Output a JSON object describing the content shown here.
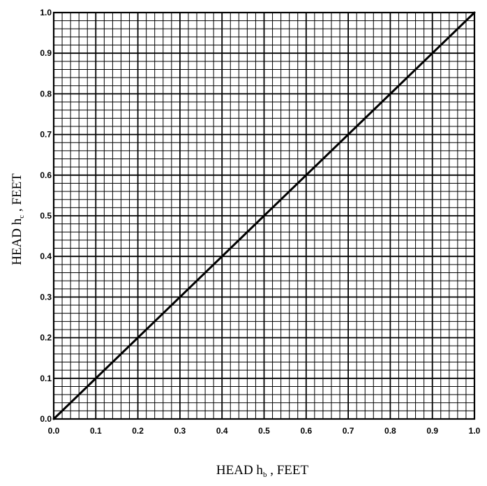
{
  "chart_data": {
    "type": "line",
    "title": "",
    "xlabel": {
      "main": "HEAD h",
      "sub": "b",
      "suffix": " , FEET"
    },
    "ylabel": {
      "main": "HEAD h",
      "sub": "c",
      "suffix": " , FEET"
    },
    "xlim": [
      0.0,
      1.0
    ],
    "ylim": [
      0.0,
      1.0
    ],
    "x_ticks": [
      0.0,
      0.1,
      0.2,
      0.3,
      0.4,
      0.5,
      0.6,
      0.7,
      0.8,
      0.9,
      1.0
    ],
    "x_tick_labels": [
      "0.0",
      "0.1",
      "0.2",
      "0.3",
      "0.4",
      "0.5",
      "0.6",
      "0.7",
      "0.8",
      "0.9",
      "1.0"
    ],
    "y_ticks": [
      0.0,
      0.1,
      0.2,
      0.3,
      0.4,
      0.5,
      0.6,
      0.7,
      0.8,
      0.9,
      1.0
    ],
    "y_tick_labels": [
      "0.0",
      "0.1",
      "0.2",
      "0.3",
      "0.4",
      "0.5",
      "0.6",
      "0.7",
      "0.8",
      "0.9",
      "1.0"
    ],
    "grid": true,
    "minor_grid_divisions": 5,
    "line_color": "#000000",
    "grid_color": "#000000",
    "series": [
      {
        "x": [
          0.0,
          1.0
        ],
        "y": [
          0.0,
          1.0
        ]
      }
    ]
  }
}
